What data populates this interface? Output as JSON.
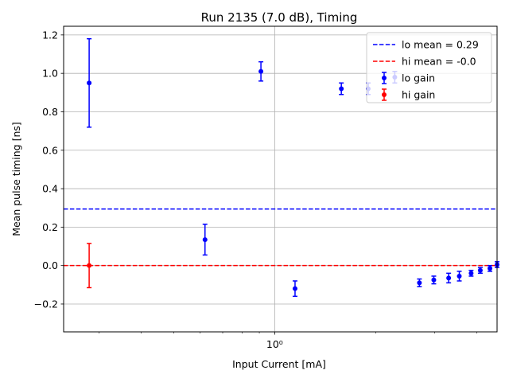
{
  "chart_data": {
    "type": "scatter",
    "title": "Run 2135 (7.0 dB), Timing",
    "xlabel": "Input Current [mA]",
    "ylabel": "Mean pulse timing  [ns]",
    "xscale": "log",
    "xlim": [
      0.235,
      4.6
    ],
    "ylim": [
      -0.345,
      1.245
    ],
    "x_ticks": [
      {
        "value": 1,
        "label": "10⁰"
      }
    ],
    "y_ticks": [
      {
        "value": -0.2,
        "label": "−0.2"
      },
      {
        "value": 0.0,
        "label": "0.0"
      },
      {
        "value": 0.2,
        "label": "0.2"
      },
      {
        "value": 0.4,
        "label": "0.4"
      },
      {
        "value": 0.6,
        "label": "0.6"
      },
      {
        "value": 0.8,
        "label": "0.8"
      },
      {
        "value": 1.0,
        "label": "1.0"
      },
      {
        "value": 1.2,
        "label": "1.2"
      }
    ],
    "grid": true,
    "legend_position": "top-right",
    "series": [
      {
        "name": "lo gain",
        "color": "#0000ff",
        "points": [
          {
            "x": 0.28,
            "y": 0.95,
            "err": 0.23
          },
          {
            "x": 0.62,
            "y": 0.135,
            "err": 0.08
          },
          {
            "x": 0.91,
            "y": 1.01,
            "err": 0.05
          },
          {
            "x": 1.15,
            "y": -0.12,
            "err": 0.04
          },
          {
            "x": 1.58,
            "y": 0.92,
            "err": 0.03
          },
          {
            "x": 1.9,
            "y": 0.92,
            "err": 0.03
          },
          {
            "x": 2.28,
            "y": 0.98,
            "err": 0.03
          },
          {
            "x": 2.7,
            "y": -0.09,
            "err": 0.02
          },
          {
            "x": 2.98,
            "y": -0.075,
            "err": 0.02
          },
          {
            "x": 3.3,
            "y": -0.065,
            "err": 0.025
          },
          {
            "x": 3.55,
            "y": -0.055,
            "err": 0.025
          },
          {
            "x": 3.85,
            "y": -0.04,
            "err": 0.015
          },
          {
            "x": 4.1,
            "y": -0.025,
            "err": 0.015
          },
          {
            "x": 4.38,
            "y": -0.015,
            "err": 0.015
          },
          {
            "x": 4.6,
            "y": 0.005,
            "err": 0.015
          }
        ]
      },
      {
        "name": "hi gain",
        "color": "#ff0000",
        "points": [
          {
            "x": 0.28,
            "y": 0.0,
            "err": 0.115
          }
        ]
      }
    ],
    "reference_lines": [
      {
        "name": "lo mean = 0.29",
        "y": 0.294,
        "color": "#0000ff",
        "style": "dashed"
      },
      {
        "name": "hi mean = -0.0",
        "y": 0.0,
        "color": "#ff0000",
        "style": "dashed"
      }
    ]
  }
}
